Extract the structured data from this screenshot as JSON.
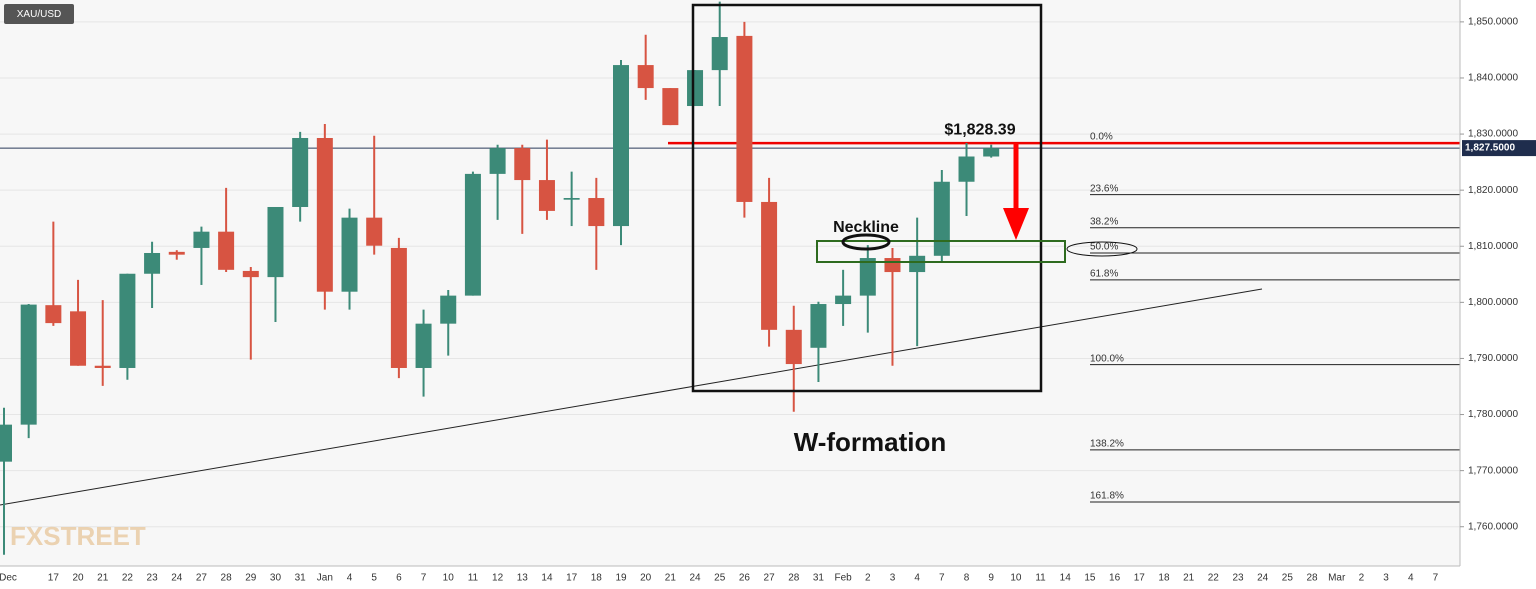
{
  "chart_data": {
    "type": "candlestick",
    "symbol": "XAU/USD",
    "watermark": "FXSTREET",
    "categories": [
      "Dec",
      null,
      "17",
      "20",
      "21",
      "22",
      "23",
      "24",
      "27",
      "28",
      "29",
      "30",
      "31",
      "Jan",
      "4",
      "5",
      "6",
      "7",
      "10",
      "11",
      "12",
      "13",
      "14",
      "17",
      "18",
      "19",
      "20",
      "21",
      "24",
      "25",
      "26",
      "27",
      "28",
      "31",
      "Feb",
      "2",
      "3",
      "4",
      "7",
      "8",
      "9",
      "10",
      "11",
      "14",
      "15",
      "16",
      "17",
      "18",
      "21",
      "22",
      "23",
      "24",
      "25",
      "28",
      "Mar",
      "2",
      "3",
      "4",
      "7"
    ],
    "open": [
      1771.6,
      1778.2,
      1799.5,
      1798.4,
      1788.7,
      1788.3,
      1805.1,
      1809,
      1809.7,
      1812.6,
      1805.6,
      1804.5,
      1817,
      1829.3,
      1801.9,
      1815.1,
      1809.7,
      1788.3,
      1796.2,
      1801.2,
      1822.9,
      1827.5,
      1821.8,
      1818.3,
      1818.6,
      1813.6,
      1842.3,
      1838.2,
      1835,
      1841.4,
      1847.5,
      1817.9,
      1795.1,
      1791.9,
      1799.7,
      1801.2,
      1807.9,
      1805.4,
      1808.3,
      1821.5,
      1826,
      null,
      null,
      null,
      null,
      null,
      null,
      null,
      null,
      null,
      null,
      null,
      null,
      null,
      null,
      null,
      null,
      null,
      null
    ],
    "high": [
      1781.2,
      1799.7,
      1814.4,
      1804,
      1800.4,
      1805.1,
      1810.8,
      1809.3,
      1813.5,
      1820.4,
      1806.3,
      1817,
      1830.4,
      1831.8,
      1816.7,
      1829.7,
      1811.5,
      1798.7,
      1802.2,
      1823.3,
      1828.1,
      1828.1,
      1829,
      1823.3,
      1822.2,
      1843.2,
      1847.7,
      1838.2,
      1841.4,
      1853.6,
      1850,
      1822.2,
      1799.4,
      1800.1,
      1805.8,
      1810.2,
      1809.7,
      1815.1,
      1823.6,
      1828.4,
      1828.1,
      null,
      null,
      null,
      null,
      null,
      null,
      null,
      null,
      null,
      null,
      null,
      null,
      null,
      null,
      null,
      null,
      null,
      null
    ],
    "low": [
      1755,
      1775.8,
      1795.8,
      1788.7,
      1785.1,
      1786.2,
      1799,
      1807.6,
      1803.1,
      1805.4,
      1789.8,
      1796.5,
      1814.4,
      1798.7,
      1798.7,
      1808.5,
      1786.5,
      1783.2,
      1790.5,
      1801.2,
      1814.7,
      1812.2,
      1814.7,
      1813.6,
      1805.8,
      1810.2,
      1836.1,
      1831.6,
      1835,
      1835,
      1815.1,
      1792.1,
      1780.5,
      1785.8,
      1795.8,
      1794.6,
      1788.7,
      1792.2,
      1807.2,
      1815.4,
      1825.8,
      null,
      null,
      null,
      null,
      null,
      null,
      null,
      null,
      null,
      null,
      null,
      null,
      null,
      null,
      null,
      null,
      null,
      null
    ],
    "close": [
      1778.2,
      1799.6,
      1796.3,
      1788.7,
      1788.3,
      1805.1,
      1808.8,
      1808.5,
      1812.6,
      1805.8,
      1804.5,
      1817,
      1829.3,
      1801.9,
      1815.1,
      1810.1,
      1788.3,
      1796.2,
      1801.2,
      1822.9,
      1827.5,
      1821.8,
      1816.3,
      1818.6,
      1813.6,
      1842.3,
      1838.2,
      1831.6,
      1841.4,
      1847.3,
      1817.9,
      1795.1,
      1789,
      1799.7,
      1801.2,
      1807.9,
      1805.4,
      1808.3,
      1821.5,
      1826,
      1827.5,
      null,
      null,
      null,
      null,
      null,
      null,
      null,
      null,
      null,
      null,
      null,
      null,
      null,
      null,
      null,
      null,
      null,
      null
    ],
    "up_color": "#3c8a78",
    "down_color": "#d75442",
    "ylim": [
      1753,
      1853.9
    ],
    "yticks": [
      {
        "value": 1760,
        "label": "1,760.0000"
      },
      {
        "value": 1770,
        "label": "1,770.0000"
      },
      {
        "value": 1780,
        "label": "1,780.0000"
      },
      {
        "value": 1790,
        "label": "1,790.0000"
      },
      {
        "value": 1800,
        "label": "1,800.0000"
      },
      {
        "value": 1810,
        "label": "1,810.0000"
      },
      {
        "value": 1820,
        "label": "1,820.0000"
      },
      {
        "value": 1830,
        "label": "1,830.0000"
      },
      {
        "value": 1840,
        "label": "1,840.0000"
      },
      {
        "value": 1850,
        "label": "1,850.0000"
      }
    ],
    "grid": true,
    "last_price": {
      "value": 1827.5,
      "label": "1,827.5000"
    },
    "price_annotation": {
      "value": 1828.39,
      "label": "$1,828.39"
    },
    "fib_levels": [
      {
        "value": 1828.4,
        "label": "0.0%"
      },
      {
        "value": 1819.2,
        "label": "23.6%"
      },
      {
        "value": 1813.3,
        "label": "38.2%"
      },
      {
        "value": 1808.8,
        "label": "50.0%"
      },
      {
        "value": 1804,
        "label": "61.8%"
      },
      {
        "value": 1788.9,
        "label": "100.0%"
      },
      {
        "value": 1773.7,
        "label": "138.2%"
      },
      {
        "value": 1764.4,
        "label": "161.8%"
      }
    ],
    "annotations": [
      "Neckline",
      "W-formation"
    ]
  }
}
